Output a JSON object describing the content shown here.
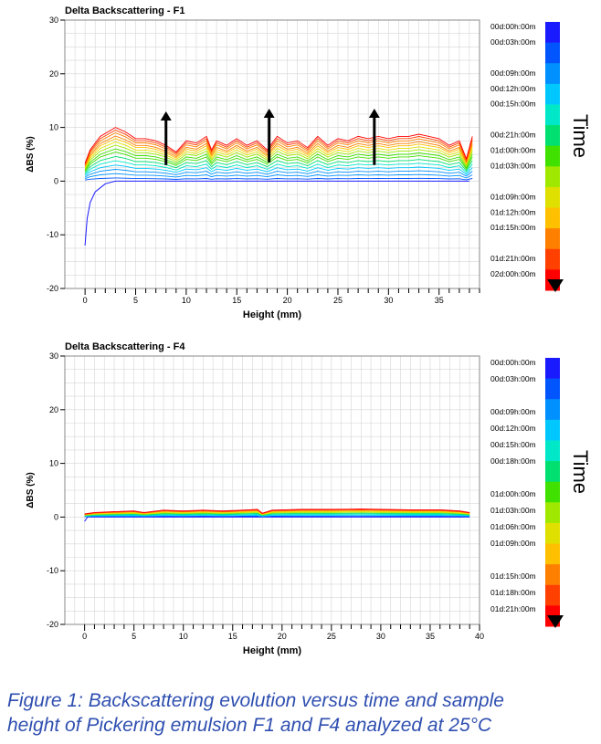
{
  "colors": {
    "scale": [
      "#1a1aff",
      "#0055ff",
      "#0090ff",
      "#00c8ff",
      "#00e8c8",
      "#00e070",
      "#40e000",
      "#a0e800",
      "#e0e000",
      "#ffc000",
      "#ff8000",
      "#ff4000",
      "#ff0000"
    ],
    "arrow": "#000000",
    "grid": "#d6d6d6",
    "caption": "#2f4fb0"
  },
  "caption": {
    "line1": "Figure 1: Backscattering evolution versus time and sample",
    "line2": "height of Pickering emulsion F1 and F4 analyzed at 25°C"
  },
  "chart_data": [
    {
      "type": "line",
      "title": "Delta Backscattering - F1",
      "xlabel": "Height (mm)",
      "ylabel": "ΔBS (%)",
      "xlim": [
        -2,
        39
      ],
      "ylim": [
        -20,
        30
      ],
      "xticks": [
        0,
        5,
        10,
        15,
        20,
        25,
        30,
        35
      ],
      "yticks": [
        -20,
        -10,
        0,
        10,
        20,
        30
      ],
      "grid": true,
      "time_label": "Time",
      "legend_position": "right",
      "time_legend": [
        "00d:00h:00m",
        "00d:03h:00m",
        "00d:09h:00m",
        "00d:12h:00m",
        "00d:15h:00m",
        "00d:21h:00m",
        "01d:00h:00m",
        "01d:03h:00m",
        "01d:09h:00m",
        "01d:12h:00m",
        "01d:15h:00m",
        "01d:21h:00m",
        "02d:00h:00m"
      ],
      "time_legend_slots": [
        0,
        1,
        3,
        4,
        5,
        7,
        8,
        9,
        11,
        12,
        13,
        15,
        16
      ],
      "time_legend_slot_count": 17,
      "series_levels": [
        0,
        0.6,
        1.4,
        2.2,
        3.0,
        3.8,
        4.6,
        5.4,
        6.0,
        6.7,
        7.3,
        7.9,
        8.4,
        9.0,
        9.5,
        10.0
      ],
      "series_base_points": [
        [
          0,
          4
        ],
        [
          0.5,
          7
        ],
        [
          1.5,
          10
        ],
        [
          3,
          12
        ],
        [
          4,
          11
        ],
        [
          5,
          9.5
        ],
        [
          6,
          9.5
        ],
        [
          7,
          9
        ],
        [
          8,
          8
        ],
        [
          9,
          6.5
        ],
        [
          10,
          9
        ],
        [
          11,
          8.5
        ],
        [
          12,
          10
        ],
        [
          12.5,
          7
        ],
        [
          13,
          9
        ],
        [
          14,
          8
        ],
        [
          15,
          9.5
        ],
        [
          16,
          8
        ],
        [
          17,
          9
        ],
        [
          18,
          7
        ],
        [
          19,
          10
        ],
        [
          20,
          8.5
        ],
        [
          21,
          9
        ],
        [
          22,
          7.5
        ],
        [
          23,
          10
        ],
        [
          24,
          8
        ],
        [
          25,
          9.5
        ],
        [
          26,
          9
        ],
        [
          27,
          10
        ],
        [
          28,
          9.5
        ],
        [
          29,
          10
        ],
        [
          30,
          9.5
        ],
        [
          31,
          10
        ],
        [
          32,
          10
        ],
        [
          33,
          10.5
        ],
        [
          34,
          10
        ],
        [
          35,
          9.5
        ],
        [
          36,
          8
        ],
        [
          37,
          9
        ],
        [
          37.7,
          5
        ],
        [
          38.3,
          10
        ]
      ],
      "initial_curve": [
        [
          0,
          -12
        ],
        [
          0.2,
          -7
        ],
        [
          0.5,
          -4
        ],
        [
          1,
          -2
        ],
        [
          2,
          -0.5
        ],
        [
          3,
          0
        ],
        [
          38,
          0
        ]
      ],
      "arrows": [
        [
          8,
          3,
          8,
          13
        ],
        [
          18.2,
          3.5,
          18.2,
          13.5
        ],
        [
          28.6,
          3,
          28.6,
          13.5
        ]
      ]
    },
    {
      "type": "line",
      "title": "Delta Backscattering - F4",
      "xlabel": "Height (mm)",
      "ylabel": "ΔBS (%)",
      "xlim": [
        -2,
        40
      ],
      "ylim": [
        -20,
        30
      ],
      "xticks": [
        0,
        5,
        10,
        15,
        20,
        25,
        30,
        35,
        40
      ],
      "yticks": [
        -20,
        -10,
        0,
        10,
        20,
        30
      ],
      "grid": true,
      "time_label": "Time",
      "legend_position": "right",
      "time_legend": [
        "00d:00h:00m",
        "00d:03h:00m",
        "00d:09h:00m",
        "00d:12h:00m",
        "00d:15h:00m",
        "00d:18h:00m",
        "01d:00h:00m",
        "01d:03h:00m",
        "01d:06h:00m",
        "01d:09h:00m",
        "01d:15h:00m",
        "01d:18h:00m",
        "01d:21h:00m"
      ],
      "time_legend_slots": [
        0,
        1,
        3,
        4,
        5,
        6,
        8,
        9,
        10,
        11,
        13,
        14,
        15
      ],
      "time_legend_slot_count": 16,
      "series_levels": [
        0,
        0.18,
        0.36,
        0.54,
        0.72,
        0.9,
        1.05,
        1.2,
        1.35,
        1.5
      ],
      "series_base_points": [
        [
          0,
          0.4
        ],
        [
          1,
          0.6
        ],
        [
          3,
          0.7
        ],
        [
          5,
          0.8
        ],
        [
          6,
          0.6
        ],
        [
          8,
          0.9
        ],
        [
          10,
          0.8
        ],
        [
          12,
          0.9
        ],
        [
          14,
          0.8
        ],
        [
          16,
          0.9
        ],
        [
          17.5,
          1.0
        ],
        [
          18,
          0.5
        ],
        [
          19,
          0.9
        ],
        [
          22,
          1.0
        ],
        [
          25,
          1.0
        ],
        [
          28,
          1.05
        ],
        [
          30,
          1.0
        ],
        [
          33,
          0.95
        ],
        [
          36,
          0.95
        ],
        [
          38,
          0.8
        ],
        [
          39,
          0.6
        ]
      ],
      "initial_curve": [
        [
          0,
          -0.8
        ],
        [
          0.3,
          0
        ],
        [
          39,
          0
        ]
      ],
      "arrows": []
    }
  ]
}
